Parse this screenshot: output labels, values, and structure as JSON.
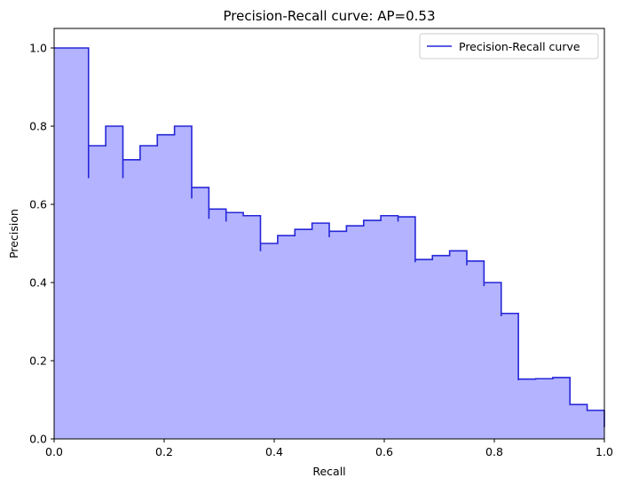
{
  "chart_data": {
    "type": "area",
    "title": "Precision-Recall curve: AP=0.53",
    "xlabel": "Recall",
    "ylabel": "Precision",
    "xlim": [
      0.0,
      1.0
    ],
    "ylim": [
      0.0,
      1.05
    ],
    "xticks": [
      "0.0",
      "0.2",
      "0.4",
      "0.6",
      "0.8",
      "1.0"
    ],
    "yticks": [
      "0.0",
      "0.2",
      "0.4",
      "0.6",
      "0.8",
      "1.0"
    ],
    "xtick_values": [
      0.0,
      0.2,
      0.4,
      0.6,
      0.8,
      1.0
    ],
    "ytick_values": [
      0.0,
      0.2,
      0.4,
      0.6,
      0.8,
      1.0
    ],
    "grid": false,
    "legend_position": "top-right",
    "series": [
      {
        "name": "Precision-Recall curve",
        "style": "step-post",
        "line_color": "#2626d9",
        "fill_color": "#b3b3ff",
        "x": [
          0.0,
          0.0625,
          0.0625,
          0.09375,
          0.125,
          0.125,
          0.15625,
          0.1875,
          0.21875,
          0.25,
          0.25,
          0.28125,
          0.28125,
          0.3125,
          0.3125,
          0.34375,
          0.375,
          0.375,
          0.40625,
          0.4375,
          0.46875,
          0.5,
          0.5,
          0.53125,
          0.5625,
          0.59375,
          0.625,
          0.625,
          0.65625,
          0.65625,
          0.6875,
          0.71875,
          0.75,
          0.75,
          0.78125,
          0.78125,
          0.8125,
          0.8125,
          0.84375,
          0.84375,
          0.875,
          0.875,
          0.90625,
          0.9375,
          0.9375,
          0.96875,
          1.0
        ],
        "y": [
          1.0,
          0.667,
          0.75,
          0.8,
          0.667,
          0.714,
          0.75,
          0.778,
          0.8,
          0.615,
          0.643,
          0.563,
          0.588,
          0.556,
          0.579,
          0.571,
          0.48,
          0.5,
          0.52,
          0.536,
          0.552,
          0.516,
          0.531,
          0.545,
          0.559,
          0.571,
          0.556,
          0.568,
          0.452,
          0.459,
          0.469,
          0.481,
          0.444,
          0.455,
          0.391,
          0.4,
          0.314,
          0.321,
          0.15,
          0.153,
          0.151,
          0.154,
          0.157,
          0.088,
          0.088,
          0.073,
          0.03
        ]
      }
    ]
  }
}
